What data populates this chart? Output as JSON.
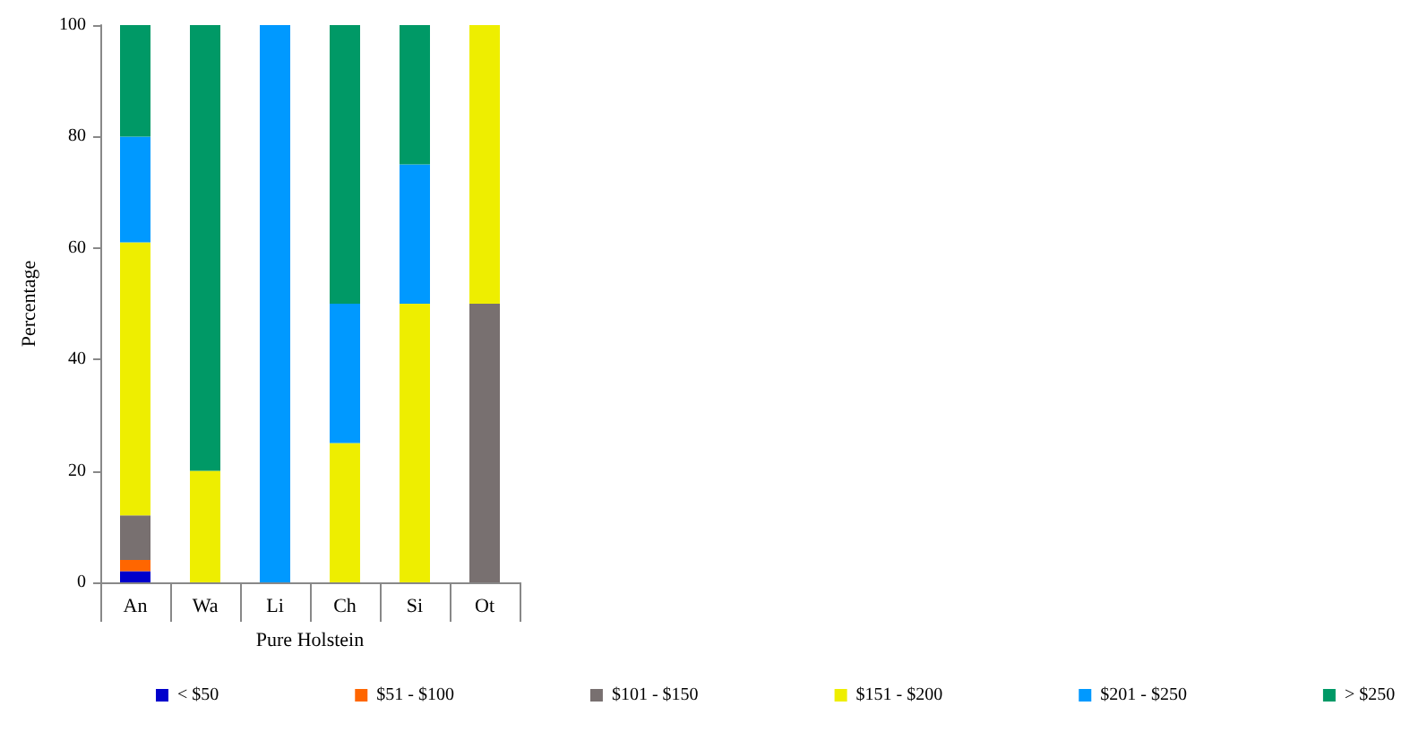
{
  "chart_data": {
    "type": "bar",
    "stacked": true,
    "ylabel": "Percentage",
    "xlabel": "Pure Holstein",
    "categories": [
      "An",
      "Wa",
      "Li",
      "Ch",
      "Si",
      "Ot"
    ],
    "series": [
      {
        "name": "< $50",
        "color": "#0000cc",
        "values": [
          2,
          0,
          0,
          0,
          0,
          0
        ]
      },
      {
        "name": "$51 - $100",
        "color": "#ff6600",
        "values": [
          2,
          0,
          0,
          0,
          0,
          0
        ]
      },
      {
        "name": "$101 - $150",
        "color": "#787070",
        "values": [
          8,
          0,
          0,
          0,
          0,
          50
        ]
      },
      {
        "name": "$151 - $200",
        "color": "#eeee00",
        "values": [
          49,
          20,
          0,
          25,
          50,
          50
        ]
      },
      {
        "name": "$201 - $250",
        "color": "#0099ff",
        "values": [
          19,
          0,
          100,
          25,
          25,
          0
        ]
      },
      {
        "name": "> $250",
        "color": "#009966",
        "values": [
          20,
          80,
          0,
          50,
          25,
          0
        ]
      }
    ],
    "ylim": [
      0,
      100
    ],
    "yticks": [
      0,
      20,
      40,
      60,
      80,
      100
    ],
    "grid": false,
    "legend": "bottom"
  }
}
